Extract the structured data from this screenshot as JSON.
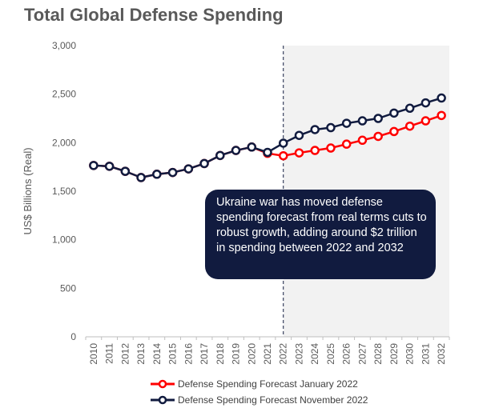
{
  "chart_data": {
    "type": "line",
    "title": "Total Global Defense Spending",
    "ylabel": "US$ Billions (Real)",
    "xlabel": "",
    "ylim": [
      0,
      3000
    ],
    "yticks": [
      0,
      500,
      1000,
      1500,
      2000,
      2500,
      3000
    ],
    "ytick_labels": [
      "0",
      "500",
      "1,000",
      "1,500",
      "2,000",
      "2,500",
      "3,000"
    ],
    "categories": [
      "2010",
      "2011",
      "2012",
      "2013",
      "2014",
      "2015",
      "2016",
      "2017",
      "2018",
      "2019",
      "2020",
      "2021",
      "2022",
      "2023",
      "2024",
      "2025",
      "2026",
      "2027",
      "2028",
      "2029",
      "2030",
      "2031",
      "2032"
    ],
    "forecast_divider": "2022",
    "series": [
      {
        "name": "Defense Spending Forecast January 2022",
        "color": "#ff0000",
        "values": [
          1765,
          1757,
          1705,
          1641,
          1675,
          1693,
          1730,
          1785,
          1868,
          1920,
          1955,
          1890,
          1865,
          1895,
          1920,
          1945,
          1985,
          2025,
          2065,
          2115,
          2170,
          2225,
          2280
        ]
      },
      {
        "name": "Defense Spending Forecast November 2022",
        "color": "#111b3f",
        "values": [
          1765,
          1757,
          1705,
          1641,
          1675,
          1693,
          1730,
          1785,
          1868,
          1920,
          1955,
          1900,
          1995,
          2075,
          2135,
          2155,
          2200,
          2225,
          2250,
          2305,
          2355,
          2410,
          2460
        ]
      }
    ],
    "annotation": "Ukraine war has moved defense spending forecast from real terms cuts to robust growth, adding around $2 trillion in spending between 2022 and 2032",
    "grid": false,
    "legend": "bottom",
    "forecast_shade_color": "#f2f2f2"
  }
}
